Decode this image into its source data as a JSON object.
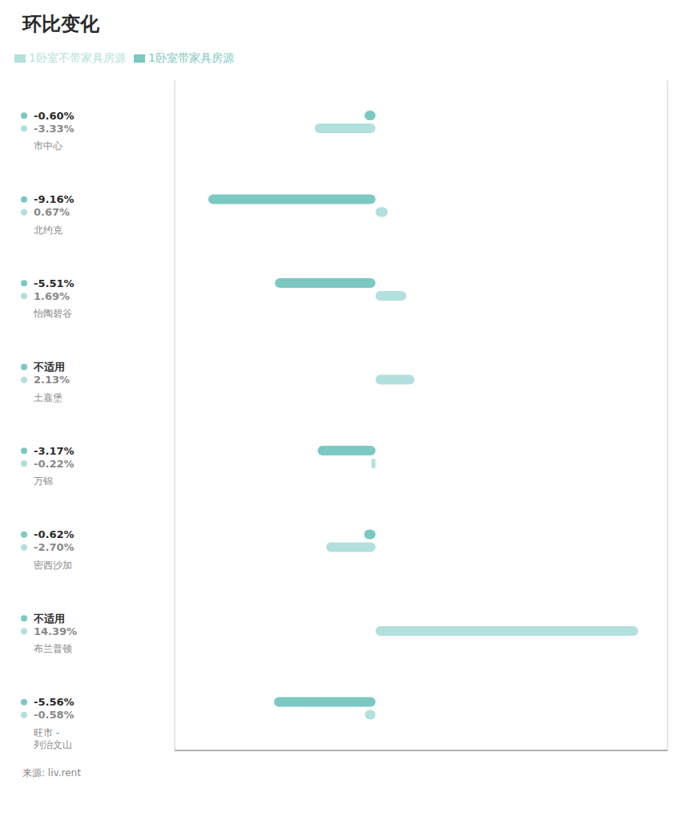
{
  "chart_data": {
    "type": "bar",
    "orientation": "horizontal",
    "title": "环比变化",
    "categories": [
      "市中心",
      "北约克",
      "怡陶碧谷",
      "土嘉堡",
      "万锦",
      "密西沙加",
      "布兰普顿",
      "旺市 -\n列治文山"
    ],
    "series": [
      {
        "name": "1卧室带家具房源",
        "color": "#7cc8c2",
        "values": [
          -0.6,
          -9.16,
          -5.51,
          null,
          -3.17,
          -0.62,
          null,
          -5.56
        ],
        "value_labels": [
          "-0.60%",
          "-9.16%",
          "-5.51%",
          "不适用",
          "-3.17%",
          "-0.62%",
          "不适用",
          "-5.56%"
        ]
      },
      {
        "name": "1卧室不带家具房源",
        "color": "#b2e0dc",
        "values": [
          -3.33,
          0.67,
          1.69,
          2.13,
          -0.22,
          -2.7,
          14.39,
          -0.58
        ],
        "value_labels": [
          "-3.33%",
          "0.67%",
          "1.69%",
          "2.13%",
          "-0.22%",
          "-2.70%",
          "14.39%",
          "-0.58%"
        ]
      }
    ],
    "xlim": [
      -11,
      16
    ],
    "xticks": [
      -10,
      -5,
      0,
      5,
      10,
      15
    ],
    "grid": true,
    "tick_labels": false,
    "data_labels": true,
    "annotations": [
      "来源: liv.rent"
    ]
  }
}
